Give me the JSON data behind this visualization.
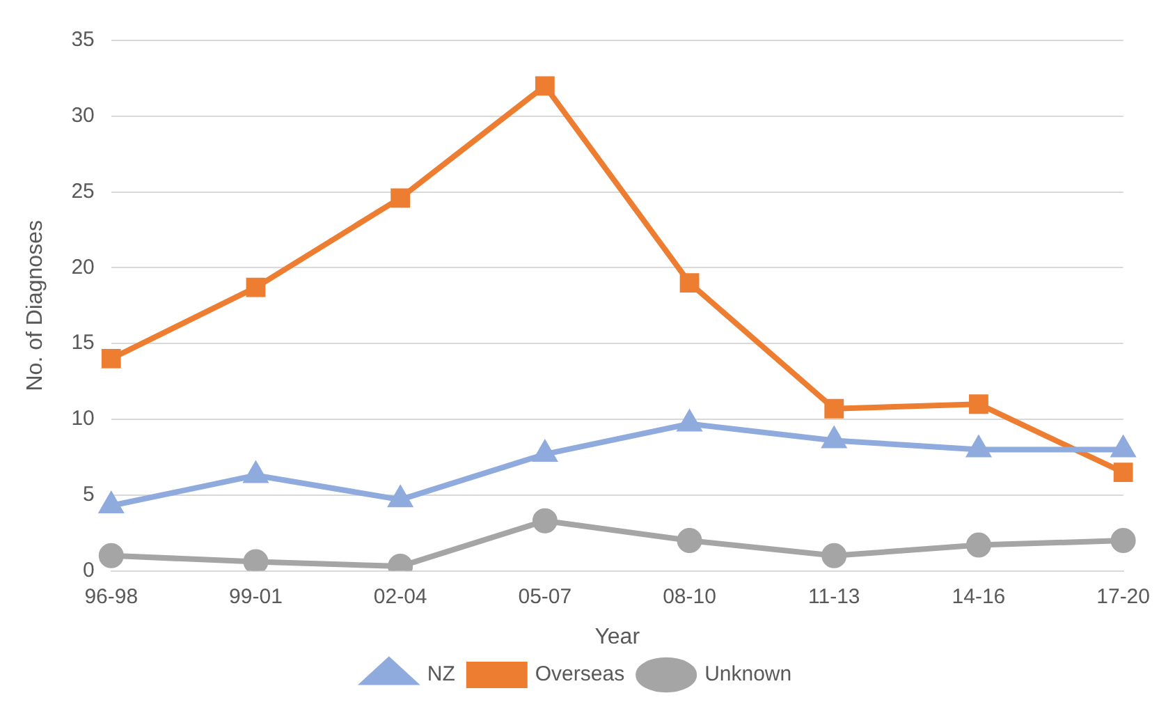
{
  "chart_data": {
    "type": "line",
    "xlabel": "Year",
    "ylabel": "No. of Diagnoses",
    "categories": [
      "96-98",
      "99-01",
      "02-04",
      "05-07",
      "08-10",
      "11-13",
      "14-16",
      "17-20"
    ],
    "series": [
      {
        "name": "NZ",
        "color": "#8faadc",
        "marker": "triangle",
        "values": [
          4.3,
          6.3,
          4.7,
          7.7,
          9.7,
          8.6,
          8,
          8
        ]
      },
      {
        "name": "Overseas",
        "color": "#ed7d31",
        "marker": "square",
        "values": [
          14,
          18.7,
          24.6,
          32,
          19,
          10.7,
          11,
          6.5
        ]
      },
      {
        "name": "Unknown",
        "color": "#a5a5a5",
        "marker": "circle",
        "values": [
          1,
          0.6,
          0.3,
          3.3,
          2,
          1,
          1.7,
          2
        ]
      }
    ],
    "ylim": [
      0,
      35
    ],
    "yticks": [
      0,
      5,
      10,
      15,
      20,
      25,
      30,
      35
    ],
    "grid": "y",
    "legend": "bottom"
  }
}
